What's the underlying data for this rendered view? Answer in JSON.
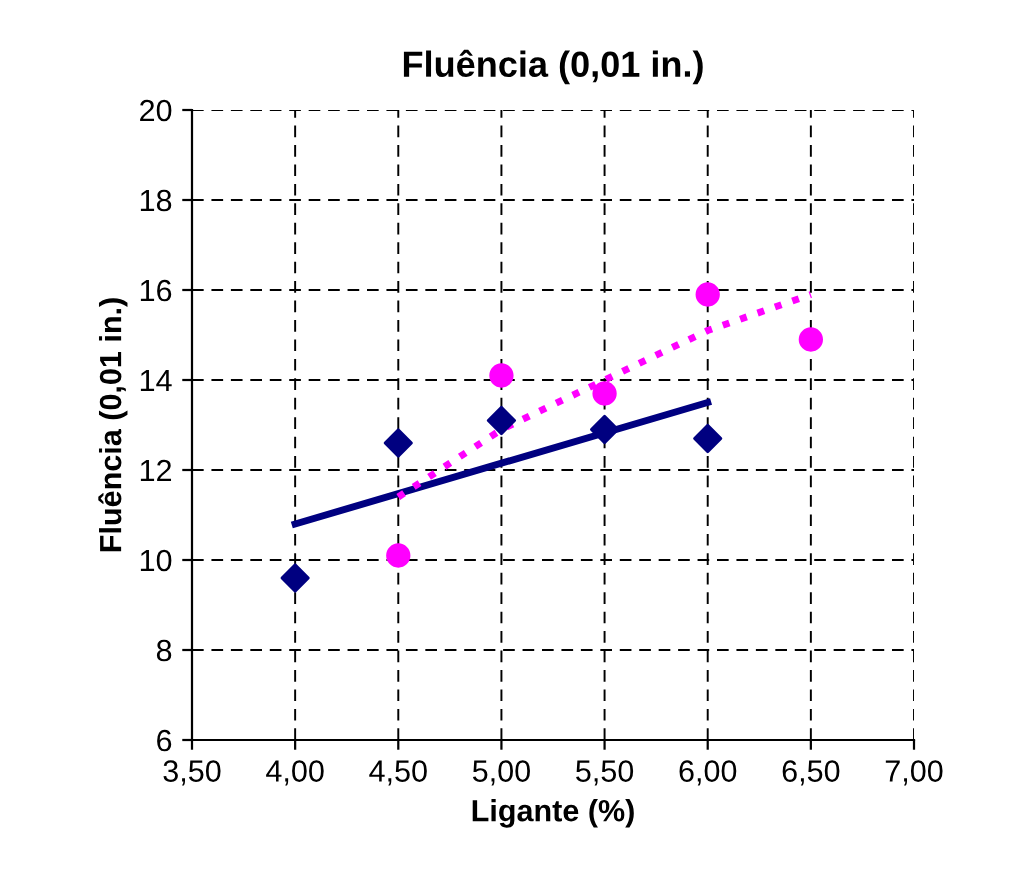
{
  "chart_data": {
    "type": "scatter",
    "title": "Fluência (0,01 in.)",
    "xlabel": "Ligante (%)",
    "ylabel": "Fluência (0,01 in.)",
    "xlim": [
      3.5,
      7.0
    ],
    "xticks": [
      {
        "value": 3.5,
        "label": "3,50"
      },
      {
        "value": 4.0,
        "label": "4,00"
      },
      {
        "value": 4.5,
        "label": "4,50"
      },
      {
        "value": 5.0,
        "label": "5,00"
      },
      {
        "value": 5.5,
        "label": "5,50"
      },
      {
        "value": 6.0,
        "label": "6,00"
      },
      {
        "value": 6.5,
        "label": "6,50"
      },
      {
        "value": 7.0,
        "label": "7,00"
      }
    ],
    "ylim": [
      6,
      20
    ],
    "yticks": [
      6,
      8,
      10,
      12,
      14,
      16,
      18,
      20
    ],
    "grid": true,
    "series": [
      {
        "marker": "diamond",
        "color": "#000080",
        "x": [
          4.0,
          4.5,
          5.0,
          5.5,
          6.0
        ],
        "values": [
          9.6,
          12.6,
          13.1,
          12.9,
          12.7
        ]
      },
      {
        "marker": "circle",
        "color": "#ff00ff",
        "x": [
          4.5,
          5.0,
          5.5,
          6.0,
          6.5
        ],
        "values": [
          10.1,
          14.1,
          13.7,
          15.9,
          14.9
        ]
      },
      {
        "type": "line",
        "line_style": "solid",
        "color": "#000080",
        "x": [
          4.0,
          6.0
        ],
        "values": [
          10.8,
          13.5
        ]
      },
      {
        "type": "line",
        "line_style": "dotted",
        "color": "#ff00ff",
        "x": [
          4.5,
          5.0,
          5.5,
          6.0,
          6.5
        ],
        "values": [
          11.4,
          12.9,
          14.0,
          15.1,
          15.9
        ]
      }
    ]
  }
}
